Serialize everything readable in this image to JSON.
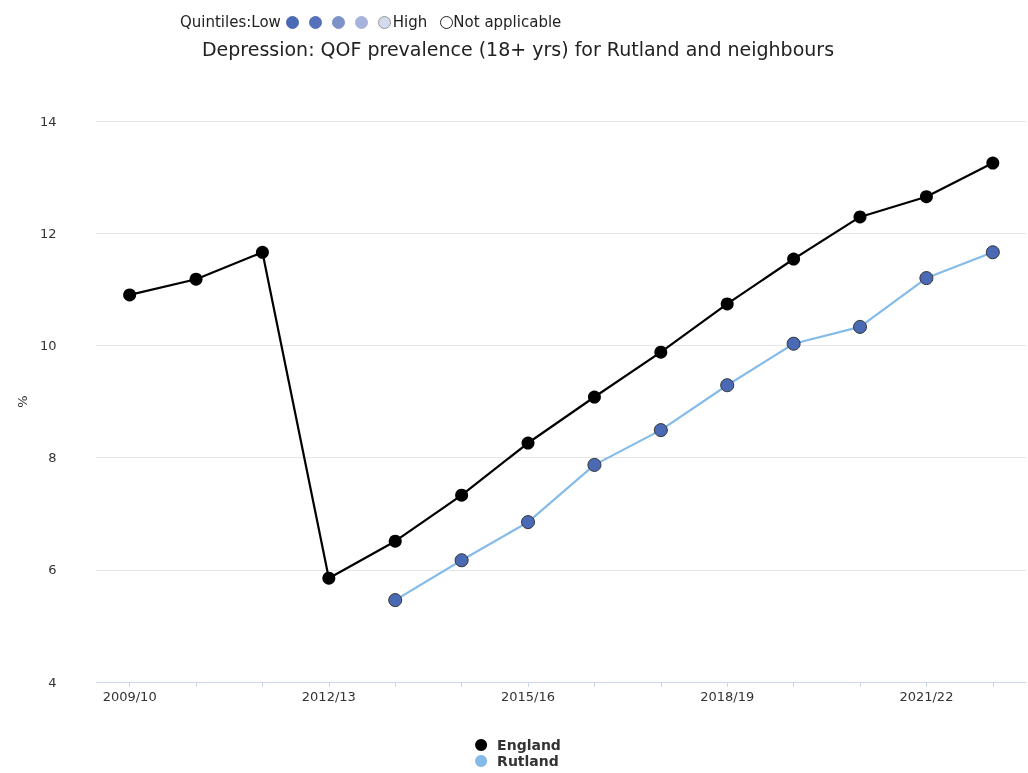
{
  "chart_data": {
    "type": "line",
    "title": "Depression: QOF prevalence (18+ yrs) for Rutland and neighbours",
    "ylabel": "%",
    "annotations": [
      "Quintiles:Low",
      "High",
      "Not applicable"
    ],
    "categories": [
      "2009/10",
      null,
      null,
      "2012/13",
      null,
      null,
      "2015/16",
      null,
      null,
      "2018/19",
      null,
      null,
      "2021/22",
      null
    ],
    "series": [
      {
        "name": "England",
        "color": "#000000",
        "values": [
          10.9,
          11.18,
          11.66,
          5.85,
          6.51,
          7.33,
          8.26,
          9.08,
          9.88,
          10.74,
          11.54,
          12.29,
          12.65,
          13.25
        ]
      },
      {
        "name": "Rutland",
        "color": "#85bbe9",
        "colors": [
          null,
          null,
          null,
          null,
          "#4a6ab5",
          "#4a6ab5",
          "#4a6ab5",
          "#4a6ab5",
          "#4a6ab5",
          "#4a6ab5",
          "#4a6ab5",
          "#4a6ab5",
          "#4a6ab5",
          "#4a6ab5"
        ],
        "values": [
          null,
          null,
          null,
          null,
          5.46,
          6.17,
          6.85,
          7.87,
          8.49,
          9.29,
          10.03,
          10.33,
          11.2,
          11.66
        ]
      }
    ],
    "ylim": [
      4,
      14
    ],
    "yticks": [
      4,
      6,
      8,
      10,
      12,
      14
    ],
    "grid": "y",
    "legend": "bottom",
    "marker": "circle",
    "line_style": "solid"
  }
}
